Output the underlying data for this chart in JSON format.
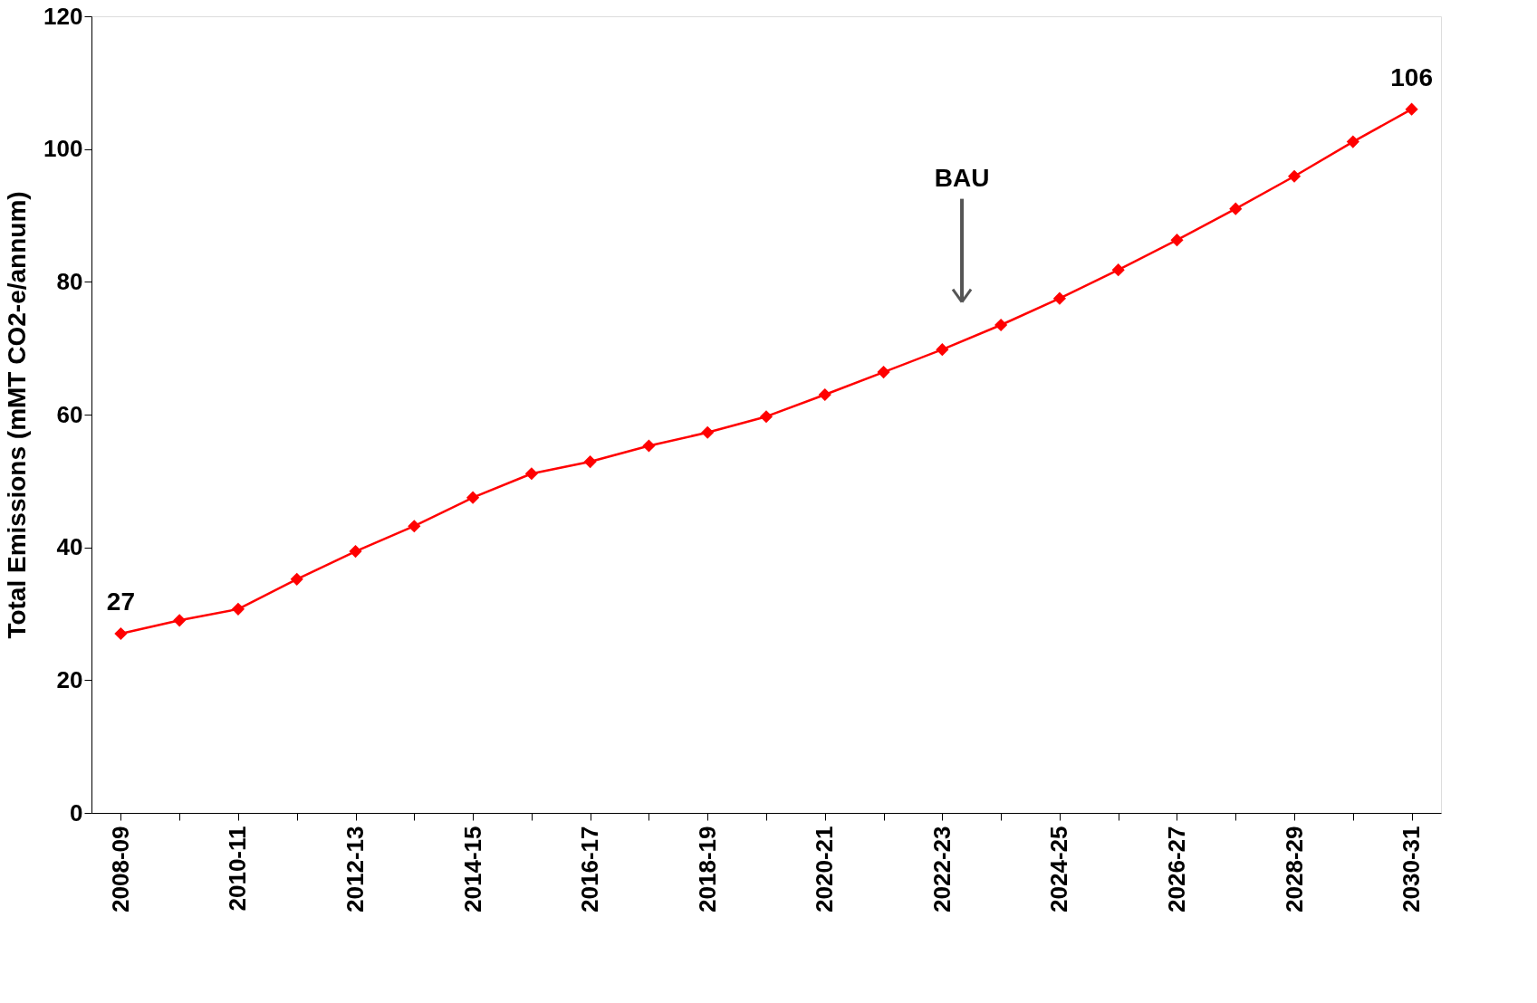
{
  "chart_data": {
    "type": "line",
    "ylabel": "Total Emissions (mMT CO2-e/annum)",
    "categories": [
      "2008-09",
      null,
      "2010-11",
      null,
      "2012-13",
      null,
      "2014-15",
      null,
      "2016-17",
      null,
      "2018-19",
      null,
      "2020-21",
      null,
      "2022-23",
      null,
      "2024-25",
      null,
      "2026-27",
      null,
      "2028-29",
      null,
      "2030-31"
    ],
    "series": [
      {
        "color": "#ff0000",
        "values": [
          27,
          29.0,
          30.7,
          35.2,
          39.4,
          43.2,
          47.5,
          51.1,
          52.9,
          55.3,
          57.3,
          59.7,
          63.0,
          66.4,
          69.8,
          73.5,
          77.5,
          81.8,
          86.3,
          91.0,
          95.9,
          101.1,
          106
        ],
        "value_labels": [
          "27",
          null,
          null,
          null,
          null,
          null,
          null,
          null,
          null,
          null,
          null,
          null,
          null,
          null,
          null,
          null,
          null,
          null,
          null,
          null,
          null,
          null,
          "106"
        ]
      }
    ],
    "ylim": [
      0,
      120
    ],
    "yticks": [
      0,
      20,
      40,
      60,
      80,
      100,
      120
    ],
    "grid": false,
    "marker": "diamond",
    "line_style": "solid",
    "annotations": [
      "BAU"
    ]
  }
}
